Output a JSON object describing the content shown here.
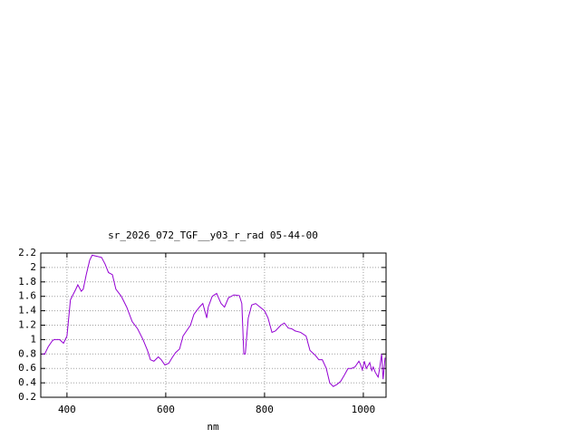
{
  "chart_data": {
    "type": "line",
    "title": "sr_2026_072_TGF__y03_r_rad 05-44-00",
    "x_label": "nm",
    "x": [
      350,
      355,
      362,
      370,
      374,
      385,
      393,
      400,
      407,
      418,
      422,
      429,
      433,
      439,
      446,
      451,
      470,
      477,
      484,
      492,
      499,
      510,
      521,
      532,
      543,
      554,
      563,
      569,
      576,
      585,
      591,
      598,
      606,
      613,
      620,
      628,
      635,
      642,
      650,
      657,
      668,
      675,
      683,
      686,
      694,
      703,
      712,
      719,
      727,
      738,
      749,
      754,
      758,
      761,
      767,
      774,
      782,
      791,
      800,
      807,
      815,
      822,
      833,
      840,
      848,
      855,
      862,
      873,
      884,
      892,
      903,
      910,
      917,
      925,
      932,
      939,
      947,
      954,
      961,
      969,
      976,
      983,
      991,
      994,
      998,
      1002,
      1006,
      1013,
      1017,
      1020,
      1024,
      1028,
      1030,
      1033,
      1037,
      1040,
      1044
    ],
    "series": [
      {
        "color": "#9400d3",
        "values": [
          0.8,
          0.8,
          0.9,
          0.98,
          1.0,
          1.0,
          0.95,
          1.05,
          1.55,
          1.7,
          1.76,
          1.67,
          1.7,
          1.9,
          2.1,
          2.17,
          2.14,
          2.05,
          1.93,
          1.9,
          1.7,
          1.6,
          1.45,
          1.25,
          1.15,
          1.0,
          0.85,
          0.72,
          0.7,
          0.76,
          0.72,
          0.65,
          0.67,
          0.75,
          0.82,
          0.87,
          1.05,
          1.12,
          1.2,
          1.35,
          1.45,
          1.5,
          1.3,
          1.45,
          1.6,
          1.64,
          1.5,
          1.45,
          1.58,
          1.62,
          1.61,
          1.5,
          0.8,
          0.8,
          1.3,
          1.48,
          1.5,
          1.45,
          1.4,
          1.3,
          1.1,
          1.12,
          1.2,
          1.23,
          1.16,
          1.15,
          1.12,
          1.1,
          1.05,
          0.85,
          0.78,
          0.72,
          0.72,
          0.6,
          0.4,
          0.35,
          0.38,
          0.42,
          0.5,
          0.6,
          0.6,
          0.62,
          0.7,
          0.66,
          0.58,
          0.7,
          0.6,
          0.68,
          0.57,
          0.62,
          0.55,
          0.5,
          0.48,
          0.6,
          0.8,
          0.45,
          0.75
        ]
      }
    ],
    "xlim": [
      347,
      1046
    ],
    "ylim": [
      0.2,
      2.2
    ],
    "xticks": [
      400,
      600,
      800,
      1000
    ],
    "yticks": [
      0.2,
      0.4,
      0.6,
      0.8,
      1,
      1.2,
      1.4,
      1.6,
      1.8,
      2,
      2.2
    ],
    "grid": true
  }
}
